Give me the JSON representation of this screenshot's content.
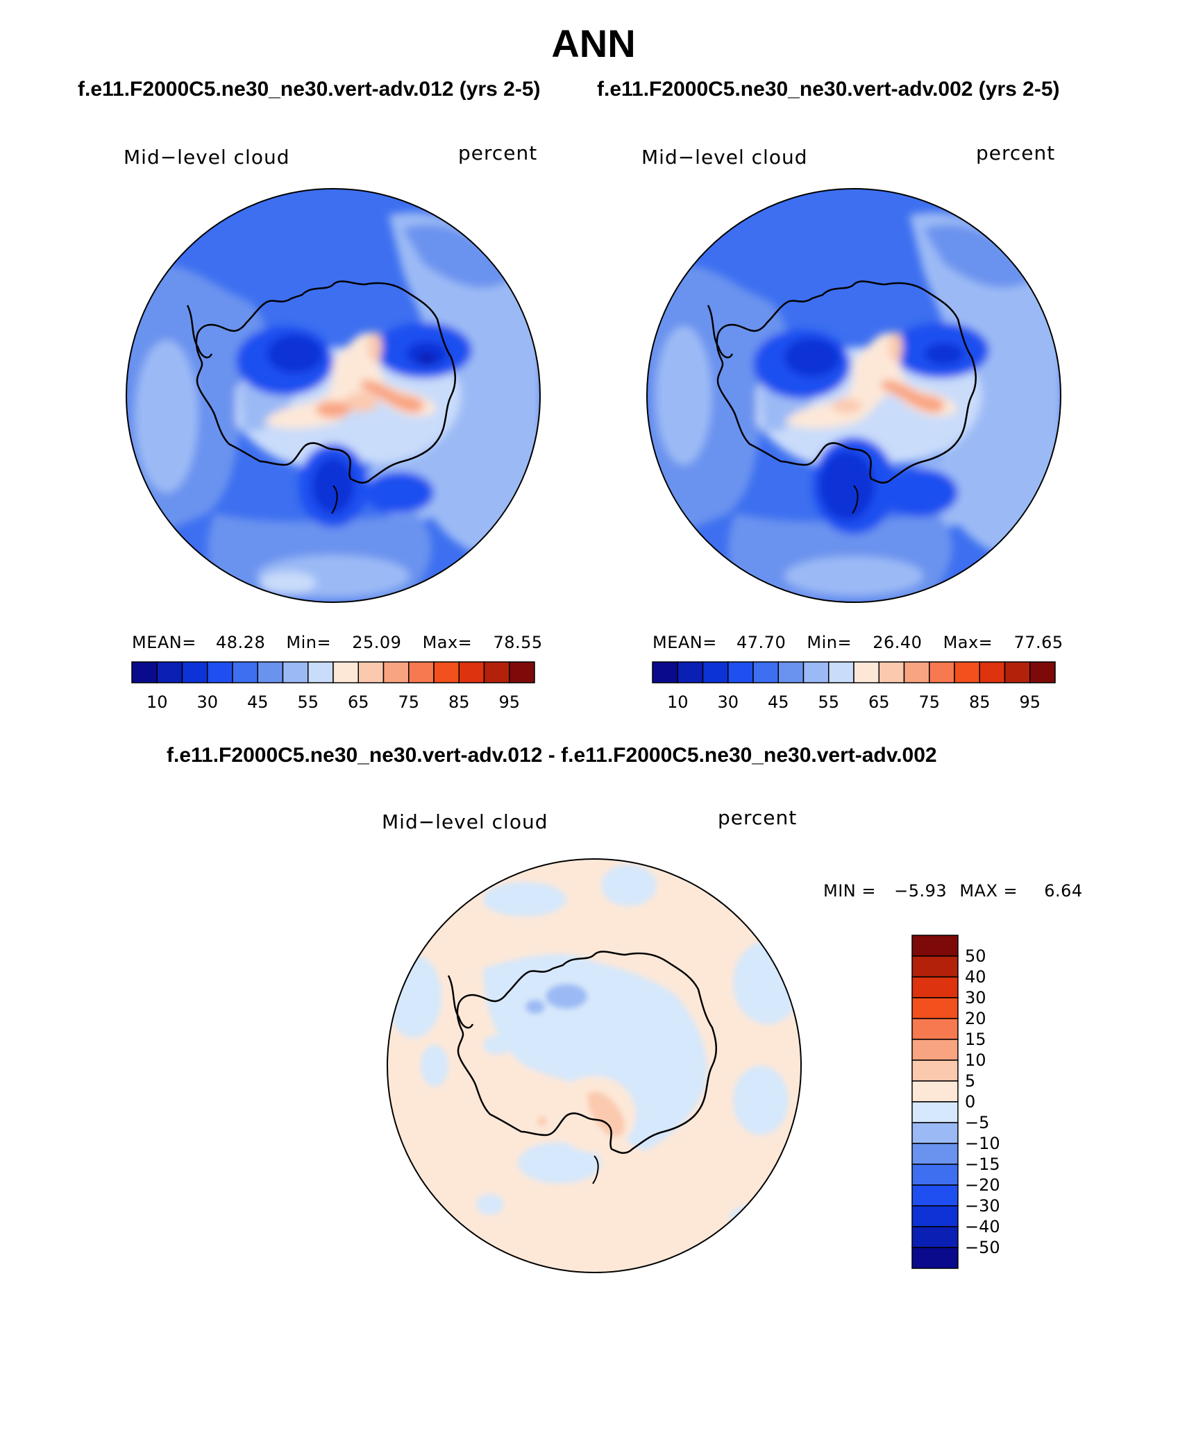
{
  "title": "ANN",
  "case_titles": {
    "left": "f.e11.F2000C5.ne30_ne30.vert-adv.012 (yrs 2-5)",
    "right": "f.e11.F2000C5.ne30_ne30.vert-adv.002 (yrs 2-5)",
    "diff": "f.e11.F2000C5.ne30_ne30.vert-adv.012 - f.e11.F2000C5.ne30_ne30.vert-adv.002"
  },
  "panels": [
    {
      "variable": "Mid−level cloud",
      "units": "percent",
      "stats": {
        "mean_label": "MEAN=",
        "mean": "48.28",
        "min_label": "Min=",
        "min": "25.09",
        "max_label": "Max=",
        "max": "78.55"
      }
    },
    {
      "variable": "Mid−level cloud",
      "units": "percent",
      "stats": {
        "mean_label": "MEAN=",
        "mean": "47.70",
        "min_label": "Min=",
        "min": "26.40",
        "max_label": "Max=",
        "max": "77.65"
      }
    },
    {
      "variable": "Mid−level cloud",
      "units": "percent",
      "stats": {
        "min_label": "MIN =",
        "min": "−5.93",
        "max_label": "MAX =",
        "max": "6.64"
      }
    }
  ],
  "colorbar_abs": {
    "colors": [
      "#0a0a8c",
      "#0a1fb4",
      "#0d33d6",
      "#1f4ff0",
      "#3d6ff0",
      "#6a93ef",
      "#9bbaf5",
      "#c9dcfa",
      "#fde8d8",
      "#fbc9ae",
      "#f9a481",
      "#f7794f",
      "#f2501c",
      "#dd330f",
      "#b3210b",
      "#7d0a08"
    ],
    "labels": [
      "10",
      "30",
      "45",
      "55",
      "65",
      "75",
      "85",
      "95"
    ]
  },
  "colorbar_diff": {
    "colors": [
      "#0a0a8c",
      "#0a1fb4",
      "#0d33d6",
      "#1f4ff0",
      "#3d6ff0",
      "#6a93ef",
      "#9bbaf5",
      "#d6e8fb",
      "#fde8d8",
      "#fbc9ae",
      "#f9a481",
      "#f7794f",
      "#f2501c",
      "#dd330f",
      "#b3210b",
      "#7d0a08"
    ],
    "labels": [
      "−50",
      "−40",
      "−30",
      "−20",
      "−15",
      "−10",
      "−5",
      "0",
      "5",
      "10",
      "15",
      "20",
      "30",
      "40",
      "50"
    ]
  }
}
